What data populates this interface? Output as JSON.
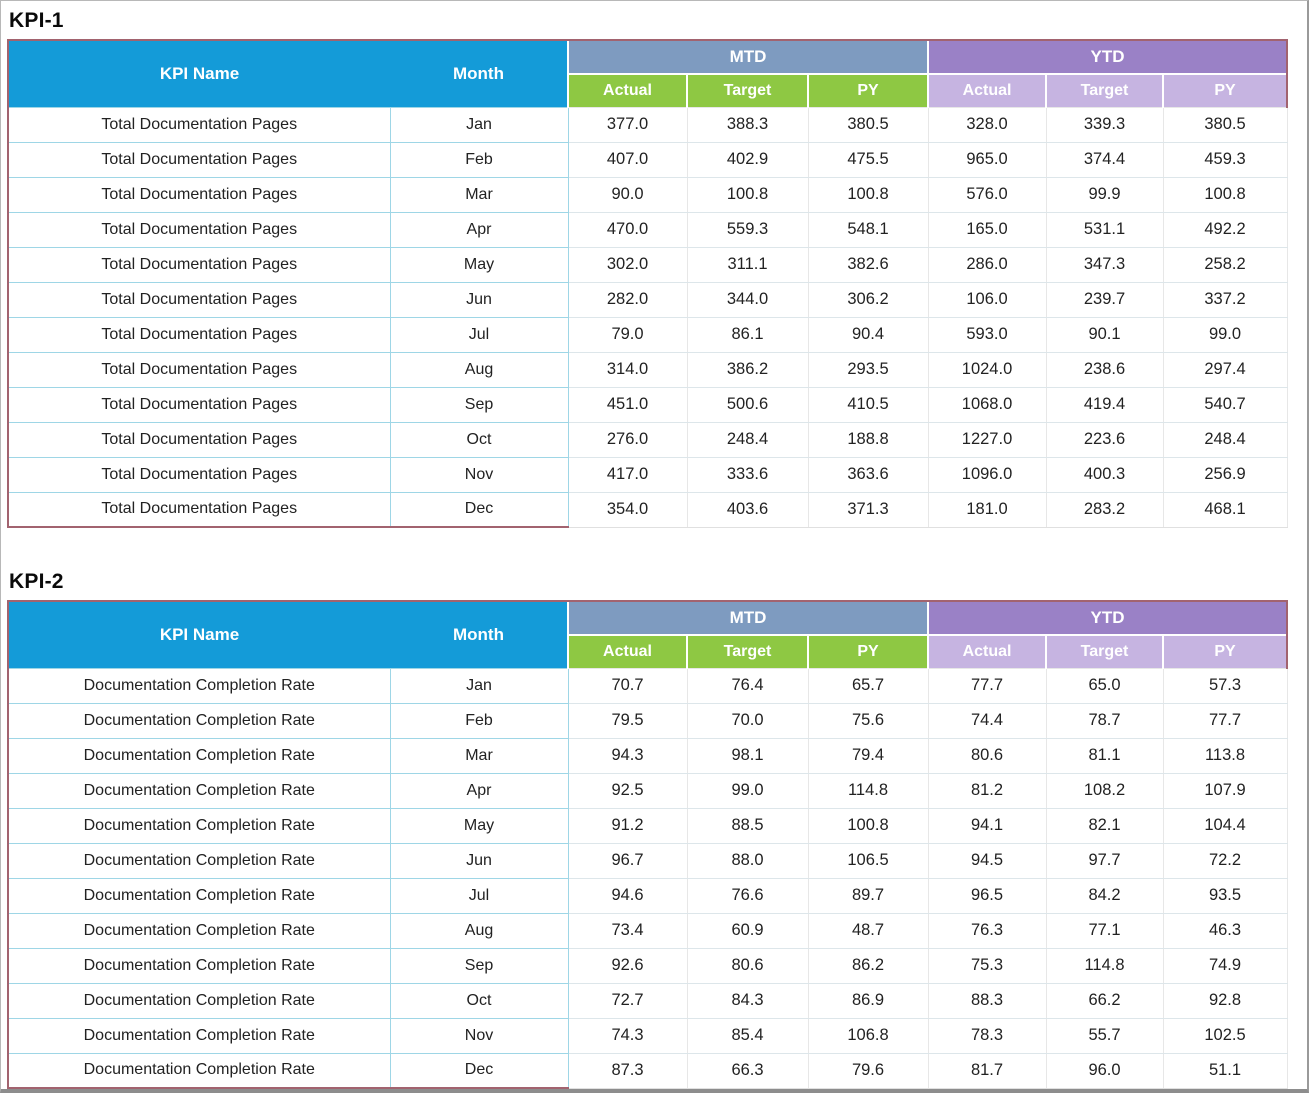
{
  "header": {
    "kpi_name_label": "KPI Name",
    "month_label": "Month",
    "mtd_label": "MTD",
    "ytd_label": "YTD",
    "sub_labels": {
      "actual": "Actual",
      "target": "Target",
      "py": "PY"
    }
  },
  "colors": {
    "header_cyan": "#149bd8",
    "mtd_band_blue": "#7e9bc0",
    "mtd_sub_green": "#8ec843",
    "ytd_band_purple": "#9a81c6",
    "ytd_sub_light_purple": "#c6b4e1",
    "outer_border_maroon": "#a2636f",
    "row_border_light_cyan": "#9ed6e6",
    "row_border_light_gray": "#e7e7e7"
  },
  "sections": [
    {
      "title": "KPI-1",
      "kpi_name": "Total Documentation Pages",
      "months": [
        "Jan",
        "Feb",
        "Mar",
        "Apr",
        "May",
        "Jun",
        "Jul",
        "Aug",
        "Sep",
        "Oct",
        "Nov",
        "Dec"
      ],
      "rows": [
        [
          "377.0",
          "388.3",
          "380.5",
          "328.0",
          "339.3",
          "380.5"
        ],
        [
          "407.0",
          "402.9",
          "475.5",
          "965.0",
          "374.4",
          "459.3"
        ],
        [
          "90.0",
          "100.8",
          "100.8",
          "576.0",
          "99.9",
          "100.8"
        ],
        [
          "470.0",
          "559.3",
          "548.1",
          "165.0",
          "531.1",
          "492.2"
        ],
        [
          "302.0",
          "311.1",
          "382.6",
          "286.0",
          "347.3",
          "258.2"
        ],
        [
          "282.0",
          "344.0",
          "306.2",
          "106.0",
          "239.7",
          "337.2"
        ],
        [
          "79.0",
          "86.1",
          "90.4",
          "593.0",
          "90.1",
          "99.0"
        ],
        [
          "314.0",
          "386.2",
          "293.5",
          "1024.0",
          "238.6",
          "297.4"
        ],
        [
          "451.0",
          "500.6",
          "410.5",
          "1068.0",
          "419.4",
          "540.7"
        ],
        [
          "276.0",
          "248.4",
          "188.8",
          "1227.0",
          "223.6",
          "248.4"
        ],
        [
          "417.0",
          "333.6",
          "363.6",
          "1096.0",
          "400.3",
          "256.9"
        ],
        [
          "354.0",
          "403.6",
          "371.3",
          "181.0",
          "283.2",
          "468.1"
        ]
      ]
    },
    {
      "title": "KPI-2",
      "kpi_name": "Documentation Completion Rate",
      "months": [
        "Jan",
        "Feb",
        "Mar",
        "Apr",
        "May",
        "Jun",
        "Jul",
        "Aug",
        "Sep",
        "Oct",
        "Nov",
        "Dec"
      ],
      "rows": [
        [
          "70.7",
          "76.4",
          "65.7",
          "77.7",
          "65.0",
          "57.3"
        ],
        [
          "79.5",
          "70.0",
          "75.6",
          "74.4",
          "78.7",
          "77.7"
        ],
        [
          "94.3",
          "98.1",
          "79.4",
          "80.6",
          "81.1",
          "113.8"
        ],
        [
          "92.5",
          "99.0",
          "114.8",
          "81.2",
          "108.2",
          "107.9"
        ],
        [
          "91.2",
          "88.5",
          "100.8",
          "94.1",
          "82.1",
          "104.4"
        ],
        [
          "96.7",
          "88.0",
          "106.5",
          "94.5",
          "97.7",
          "72.2"
        ],
        [
          "94.6",
          "76.6",
          "89.7",
          "96.5",
          "84.2",
          "93.5"
        ],
        [
          "73.4",
          "60.9",
          "48.7",
          "76.3",
          "77.1",
          "46.3"
        ],
        [
          "92.6",
          "80.6",
          "86.2",
          "75.3",
          "114.8",
          "74.9"
        ],
        [
          "72.7",
          "84.3",
          "86.9",
          "88.3",
          "66.2",
          "92.8"
        ],
        [
          "74.3",
          "85.4",
          "106.8",
          "78.3",
          "55.7",
          "102.5"
        ],
        [
          "87.3",
          "66.3",
          "79.6",
          "81.7",
          "96.0",
          "51.1"
        ]
      ]
    }
  ]
}
